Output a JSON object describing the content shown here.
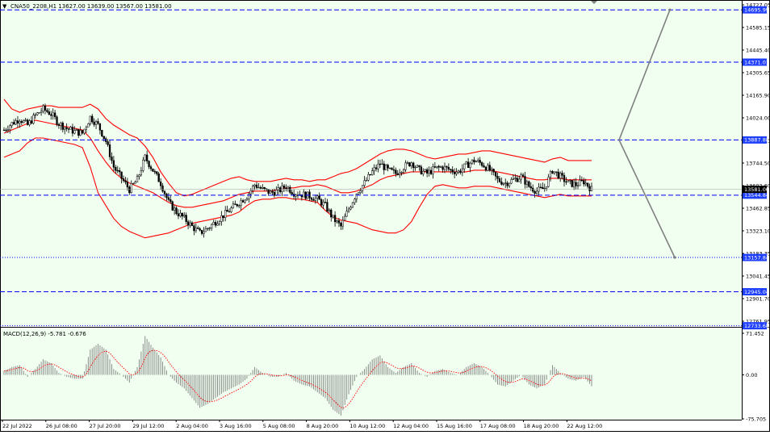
{
  "header": {
    "menu_glyph": "▼",
    "symbol_info": "CNA50_2208,H1  13627.00 13639.00 13567.00 13581.00",
    "indicator_label": "MACD(12,26,9) -5.781 -0.676"
  },
  "colors": {
    "background": "#f0fff0",
    "candle": "#000000",
    "bands": "#ff0000",
    "level_line": "#0000ff",
    "price_label_bg": "#1f3fff",
    "current_price_label_bg": "#000000",
    "projection": "#808080",
    "macd_hist": "#808080",
    "macd_signal": "#ff0000"
  },
  "chart_data": [
    {
      "type": "candlestick",
      "title": "CNA50_2208,H1",
      "ohlc_last": {
        "open": 13627.0,
        "high": 13639.0,
        "low": 13567.0,
        "close": 13581.0
      },
      "ylim": [
        12720,
        14740
      ],
      "y_ticks": [
        "14727.05",
        "14585.15",
        "14445.40",
        "14305.65",
        "14165.90",
        "14024.00",
        "13884.25",
        "13744.50",
        "13602.60",
        "13462.85",
        "13323.10",
        "13183.35",
        "13041.45",
        "12901.70",
        "12761.95"
      ],
      "x_ticks": [
        "22 Jul 2022",
        "26 Jul 08:00",
        "27 Jul 20:00",
        "29 Jul 12:00",
        "2 Aug 04:00",
        "3 Aug 16:00",
        "5 Aug 08:00",
        "8 Aug 20:00",
        "10 Aug 12:00",
        "12 Aug 04:00",
        "15 Aug 16:00",
        "17 Aug 08:00",
        "18 Aug 20:00",
        "22 Aug 12:00"
      ],
      "current_price": "13581.00",
      "levels": [
        {
          "label": "14695.99",
          "price": 14695.99,
          "style": "dashed"
        },
        {
          "label": "14371.01",
          "price": 14371.01,
          "style": "dashed"
        },
        {
          "label": "13887.88",
          "price": 13887.88,
          "style": "dashed"
        },
        {
          "label": "13544.84",
          "price": 13544.84,
          "style": "dashed"
        },
        {
          "label": "13157.84",
          "price": 13157.84,
          "style": "dotted"
        },
        {
          "label": "12945.04",
          "price": 12945.04,
          "style": "dashed"
        },
        {
          "label": "12733.68",
          "price": 12733.68,
          "style": "dotted"
        }
      ],
      "projections": [
        {
          "from": 13887.88,
          "to": 14695.99
        },
        {
          "from": 13887.88,
          "to": 13157.84
        }
      ],
      "close_path": [
        13950,
        13990,
        14020,
        13980,
        14040,
        14080,
        14050,
        13990,
        13960,
        13940,
        13930,
        14030,
        13980,
        13880,
        13720,
        13650,
        13580,
        13640,
        13780,
        13700,
        13620,
        13500,
        13440,
        13400,
        13350,
        13310,
        13340,
        13380,
        13420,
        13460,
        13500,
        13540,
        13610,
        13580,
        13560,
        13570,
        13600,
        13560,
        13550,
        13540,
        13520,
        13480,
        13400,
        13350,
        13460,
        13560,
        13620,
        13690,
        13740,
        13700,
        13680,
        13720,
        13750,
        13700,
        13680,
        13710,
        13720,
        13700,
        13690,
        13730,
        13760,
        13740,
        13700,
        13640,
        13620,
        13640,
        13660,
        13600,
        13570,
        13590,
        13700,
        13660,
        13620,
        13610,
        13630,
        13581
      ],
      "band_mid": [
        13930,
        13950,
        13970,
        13990,
        14010,
        14000,
        13990,
        13980,
        13970,
        13960,
        13950,
        13900,
        13820,
        13750,
        13690,
        13650,
        13620,
        13600,
        13580,
        13560,
        13530,
        13500,
        13480,
        13470,
        13470,
        13480,
        13490,
        13500,
        13510,
        13530,
        13550,
        13560,
        13570,
        13570,
        13570,
        13580,
        13590,
        13590,
        13600,
        13600,
        13610,
        13600,
        13580,
        13560,
        13560,
        13570,
        13590,
        13610,
        13640,
        13660,
        13670,
        13680,
        13690,
        13690,
        13690,
        13690,
        13690,
        13690,
        13690,
        13690,
        13700,
        13700,
        13700,
        13690,
        13680,
        13670,
        13660,
        13650,
        13640,
        13640,
        13650,
        13650,
        13640,
        13640,
        13640,
        13640
      ],
      "band_upper": [
        14140,
        14080,
        14060,
        14080,
        14090,
        14100,
        14100,
        14090,
        14090,
        14090,
        14090,
        14110,
        14080,
        14020,
        13980,
        13950,
        13920,
        13900,
        13850,
        13780,
        13690,
        13620,
        13560,
        13540,
        13550,
        13570,
        13590,
        13610,
        13630,
        13650,
        13660,
        13640,
        13630,
        13630,
        13630,
        13640,
        13650,
        13640,
        13640,
        13630,
        13640,
        13640,
        13660,
        13680,
        13690,
        13710,
        13740,
        13770,
        13800,
        13820,
        13830,
        13830,
        13820,
        13800,
        13780,
        13770,
        13780,
        13790,
        13800,
        13800,
        13810,
        13820,
        13820,
        13810,
        13800,
        13790,
        13780,
        13770,
        13760,
        13750,
        13770,
        13780,
        13760,
        13760,
        13760,
        13760
      ],
      "band_lower": [
        13780,
        13800,
        13820,
        13870,
        13900,
        13900,
        13890,
        13880,
        13870,
        13860,
        13840,
        13720,
        13560,
        13480,
        13400,
        13350,
        13320,
        13300,
        13280,
        13290,
        13300,
        13310,
        13330,
        13350,
        13370,
        13380,
        13390,
        13400,
        13410,
        13420,
        13440,
        13480,
        13510,
        13520,
        13520,
        13530,
        13530,
        13520,
        13520,
        13510,
        13500,
        13450,
        13410,
        13390,
        13380,
        13370,
        13350,
        13330,
        13320,
        13310,
        13310,
        13330,
        13380,
        13470,
        13550,
        13600,
        13610,
        13600,
        13590,
        13590,
        13600,
        13600,
        13600,
        13590,
        13580,
        13570,
        13560,
        13550,
        13540,
        13530,
        13540,
        13550,
        13540,
        13540,
        13540,
        13540
      ]
    },
    {
      "type": "bar",
      "title": "MACD(12,26,9)",
      "ylim": [
        -75.705,
        71.452
      ],
      "y_ticks": [
        "71.452",
        "0.00",
        "-75.705"
      ],
      "current_values": {
        "macd": -5.781,
        "signal": -0.676
      }
    }
  ]
}
